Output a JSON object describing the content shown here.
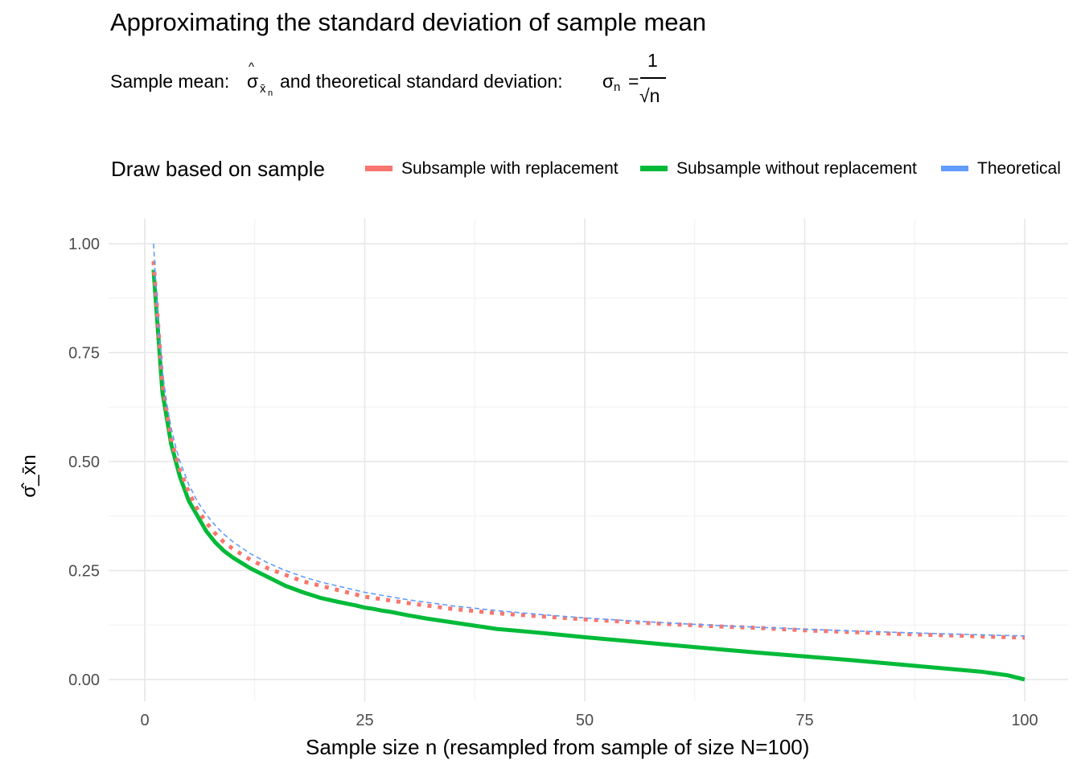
{
  "title": "Approximating the standard deviation of sample mean",
  "subtitle": {
    "part1": "Sample mean:",
    "sigma_hat": "σ",
    "hat": "^",
    "xbar": "x̄",
    "xbar_sub": "n",
    "part2": "and theoretical standard deviation:",
    "sigma": "σ",
    "sigma_sub": "n",
    "equals": "=",
    "frac_num": "1",
    "frac_den": "√n"
  },
  "legend": {
    "title": "Draw based on sample",
    "placement": "top",
    "items": [
      {
        "label": "Subsample with replacement",
        "color": "#F8766D"
      },
      {
        "label": "Subsample without replacement",
        "color": "#00BA38"
      },
      {
        "label": "Theoretical",
        "color": "#619CFF"
      }
    ]
  },
  "chart_data": {
    "type": "line",
    "xlabel": "Sample size n (resampled from sample of size N=100)",
    "ylabel": "σ̂_x̄n",
    "xlim": [
      0,
      100
    ],
    "ylim": [
      0,
      1
    ],
    "x_ticks": [
      "0",
      "25",
      "50",
      "75",
      "100"
    ],
    "y_ticks": [
      "0.00",
      "0.25",
      "0.50",
      "0.75",
      "1.00"
    ],
    "grid": true,
    "series": [
      {
        "name": "Subsample with replacement",
        "color": "#F8766D",
        "style": "dotted",
        "x": [
          1,
          2,
          3,
          4,
          5,
          6,
          7,
          8,
          9,
          10,
          12,
          14,
          16,
          18,
          20,
          25,
          30,
          35,
          40,
          45,
          50,
          55,
          60,
          65,
          70,
          75,
          80,
          85,
          90,
          95,
          100
        ],
        "y": [
          0.96,
          0.68,
          0.55,
          0.48,
          0.43,
          0.39,
          0.36,
          0.335,
          0.315,
          0.3,
          0.275,
          0.255,
          0.24,
          0.225,
          0.215,
          0.19,
          0.175,
          0.162,
          0.152,
          0.145,
          0.138,
          0.132,
          0.127,
          0.122,
          0.118,
          0.113,
          0.109,
          0.105,
          0.102,
          0.099,
          0.096
        ]
      },
      {
        "name": "Subsample without replacement",
        "color": "#00BA38",
        "style": "solid",
        "x": [
          1,
          2,
          3,
          4,
          5,
          6,
          7,
          8,
          9,
          10,
          12,
          14,
          16,
          18,
          20,
          22,
          24,
          25,
          26,
          27,
          28,
          29,
          30,
          32,
          34,
          36,
          38,
          40,
          45,
          50,
          55,
          60,
          65,
          70,
          75,
          80,
          85,
          90,
          95,
          98,
          100
        ],
        "y": [
          0.94,
          0.66,
          0.54,
          0.465,
          0.41,
          0.375,
          0.34,
          0.315,
          0.295,
          0.28,
          0.255,
          0.235,
          0.215,
          0.2,
          0.187,
          0.178,
          0.17,
          0.165,
          0.162,
          0.158,
          0.155,
          0.151,
          0.147,
          0.14,
          0.134,
          0.128,
          0.122,
          0.116,
          0.107,
          0.097,
          0.088,
          0.079,
          0.07,
          0.061,
          0.053,
          0.045,
          0.036,
          0.027,
          0.018,
          0.01,
          0.0
        ]
      },
      {
        "name": "Theoretical",
        "color": "#619CFF",
        "style": "dashed",
        "formula": "1/sqrt(n)",
        "x": [
          1,
          1.5,
          2,
          2.5,
          3,
          3.5,
          4,
          5,
          6,
          7,
          8,
          9,
          10,
          12,
          14,
          16,
          18,
          20,
          25,
          30,
          35,
          40,
          45,
          50,
          55,
          60,
          65,
          70,
          75,
          80,
          85,
          90,
          95,
          100
        ],
        "y": [
          1.0,
          0.8165,
          0.7071,
          0.6325,
          0.5774,
          0.5345,
          0.5,
          0.4472,
          0.4082,
          0.378,
          0.3536,
          0.3333,
          0.3162,
          0.2887,
          0.2673,
          0.25,
          0.2357,
          0.2236,
          0.2,
          0.1826,
          0.169,
          0.1581,
          0.1491,
          0.1414,
          0.1348,
          0.1291,
          0.124,
          0.1195,
          0.1155,
          0.1118,
          0.1085,
          0.1054,
          0.1026,
          0.1
        ]
      }
    ]
  }
}
